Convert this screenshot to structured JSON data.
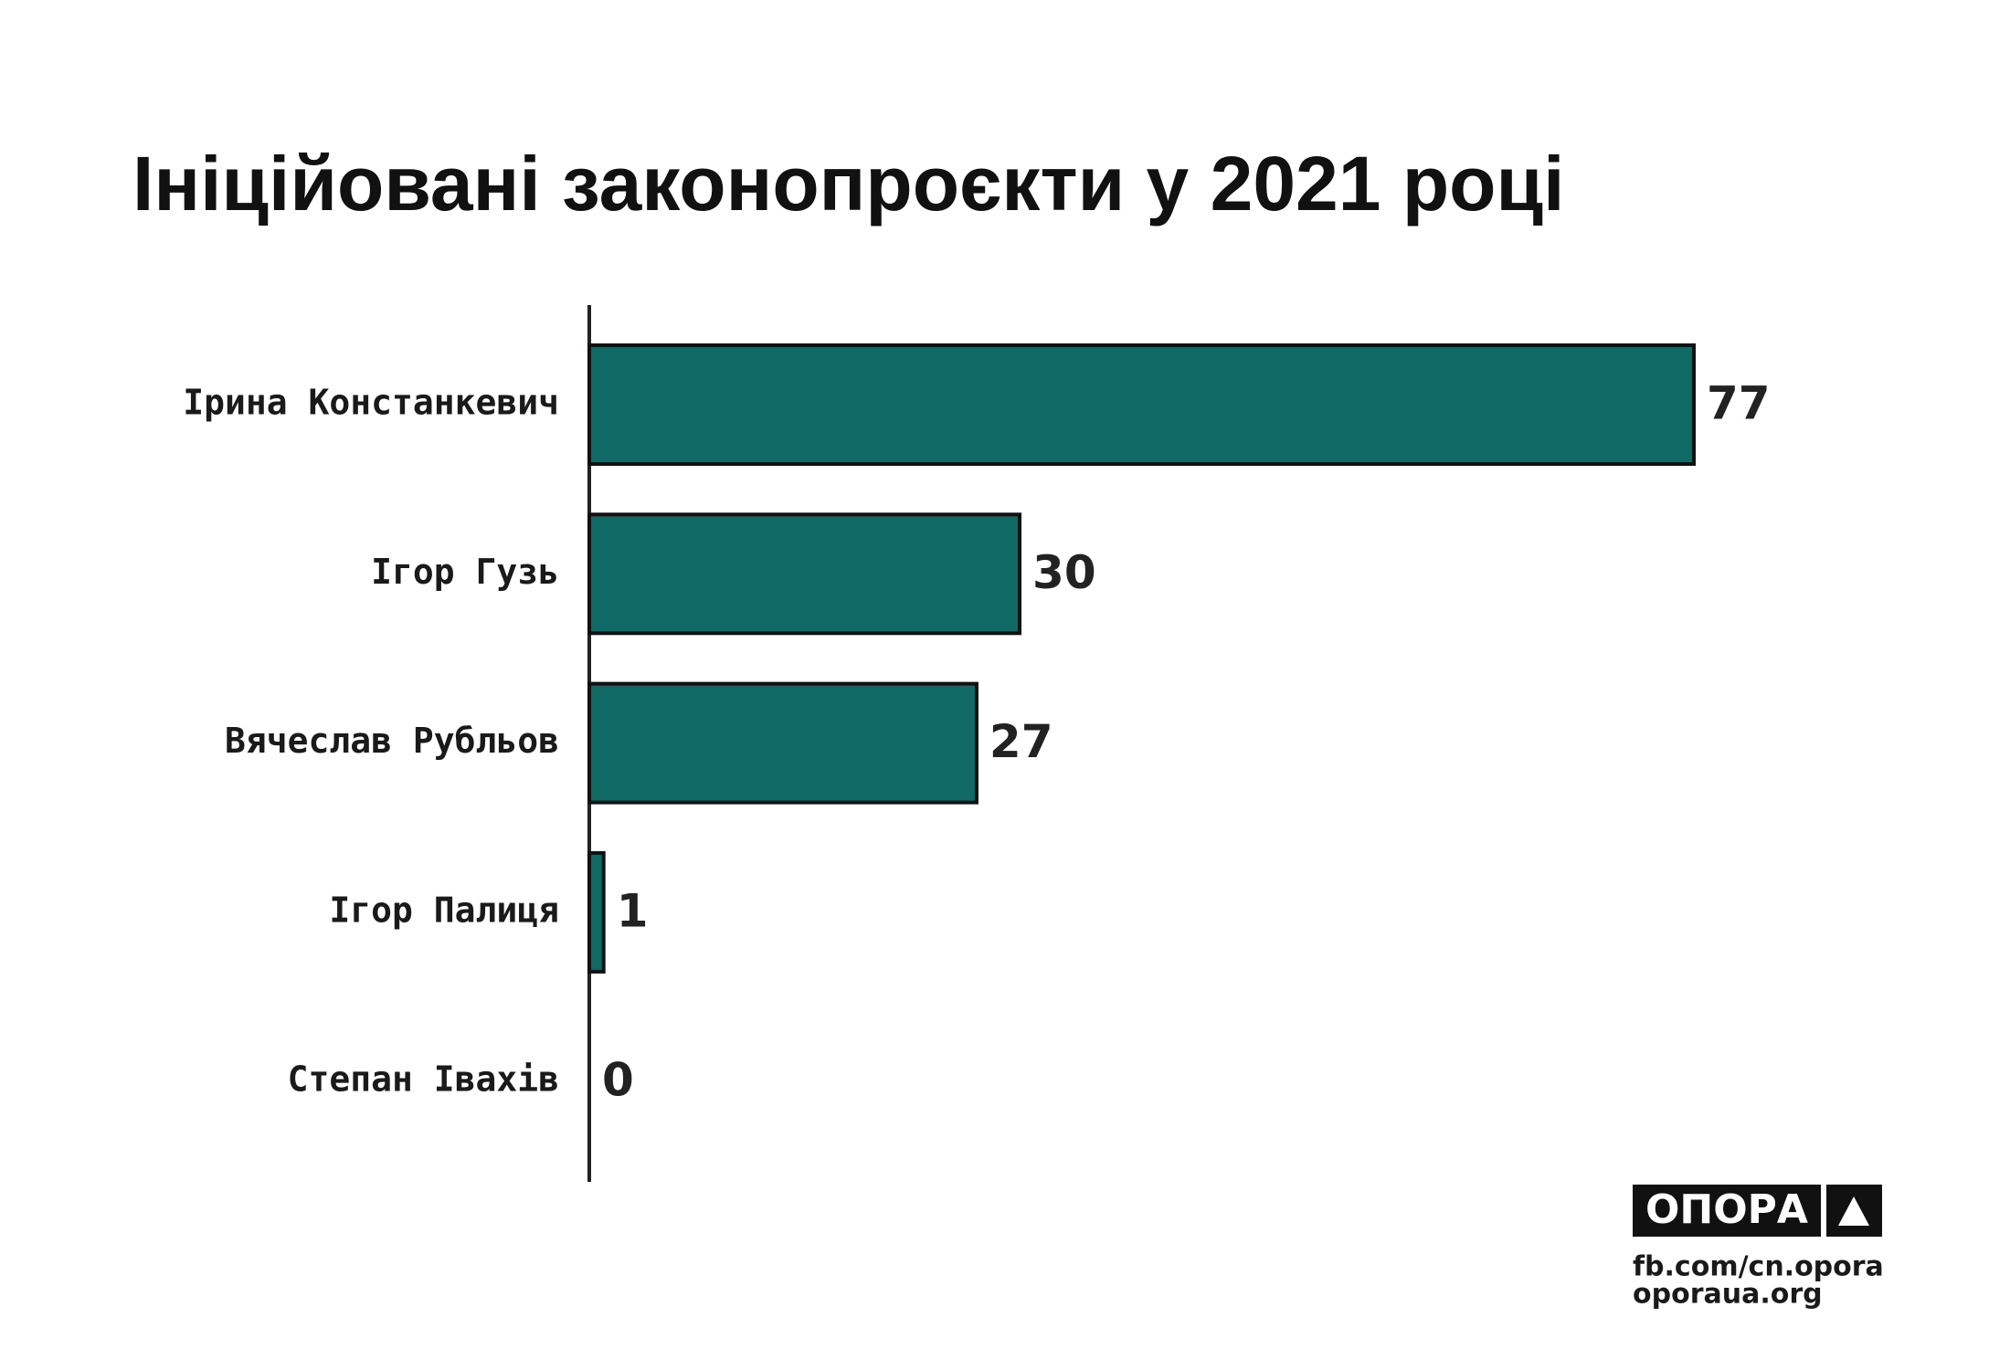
{
  "chart_data": {
    "type": "bar",
    "orientation": "horizontal",
    "title": "Ініційовані законопроєкти у 2021 році",
    "categories": [
      "Ірина Констанкевич",
      "Ігор Гузь",
      "Вячеслав Рубльов",
      "Ігор Палиця",
      "Степан Івахів"
    ],
    "values": [
      77,
      30,
      27,
      1,
      0
    ],
    "color": "#116965"
  },
  "branding": {
    "logo": "ОПОРА",
    "links": [
      "fb.com/cn.opora",
      "oporaua.org"
    ]
  }
}
